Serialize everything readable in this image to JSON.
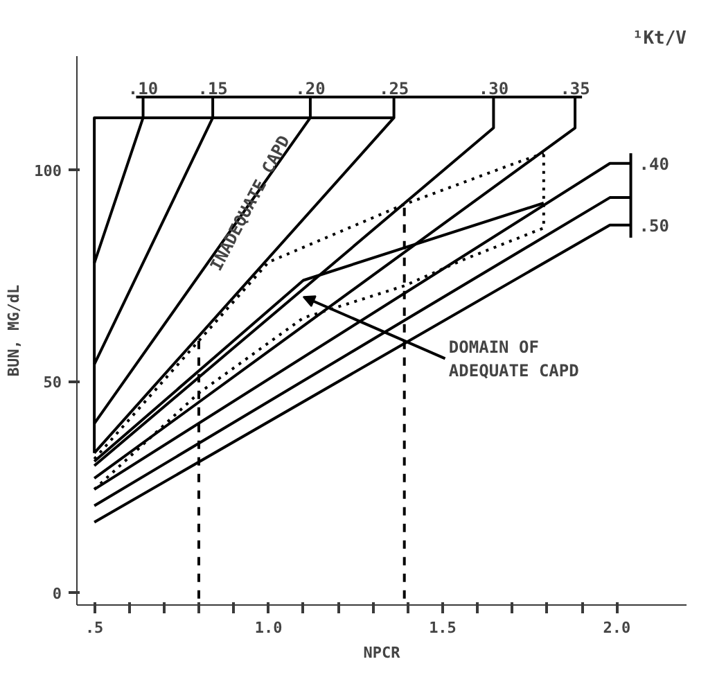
{
  "chart_data": {
    "type": "line",
    "xlabel": "NPCR",
    "ylabel": "BUN, MG/dL",
    "x2label": "¹Kt/V",
    "xlim": [
      0.45,
      2.2
    ],
    "ylim": [
      -3,
      127
    ],
    "xticks": [
      {
        "value": 0.5,
        "label": ".5"
      },
      {
        "value": 0.6,
        "label": null
      },
      {
        "value": 0.7,
        "label": null
      },
      {
        "value": 0.8,
        "label": null
      },
      {
        "value": 0.9,
        "label": null
      },
      {
        "value": 1.0,
        "label": "1.0"
      },
      {
        "value": 1.1,
        "label": null
      },
      {
        "value": 1.2,
        "label": null
      },
      {
        "value": 1.3,
        "label": null
      },
      {
        "value": 1.4,
        "label": null
      },
      {
        "value": 1.5,
        "label": "1.5"
      },
      {
        "value": 1.6,
        "label": null
      },
      {
        "value": 1.7,
        "label": null
      },
      {
        "value": 1.8,
        "label": null
      },
      {
        "value": 1.9,
        "label": null
      },
      {
        "value": 2.0,
        "label": "2.0"
      }
    ],
    "yticks": [
      0,
      50,
      100
    ],
    "grid": false,
    "marker": "none",
    "series": [
      {
        "name": ".10",
        "color": "#000000",
        "x": [
          0.5,
          0.64,
          0.64
        ],
        "values": [
          78,
          112.4,
          117.3
        ]
      },
      {
        "name": ".15",
        "color": "#000000",
        "x": [
          0.5,
          0.84,
          0.84
        ],
        "values": [
          54,
          112.4,
          117.3
        ]
      },
      {
        "name": ".20",
        "color": "#000000",
        "x": [
          0.5,
          1.12,
          1.12
        ],
        "values": [
          40,
          112.4,
          117.3
        ]
      },
      {
        "name": ".25",
        "color": "#000000",
        "x": [
          0.5,
          1.36,
          1.36
        ],
        "values": [
          33,
          112.4,
          117.3
        ]
      },
      {
        "name": ".30",
        "color": "#000000",
        "x": [
          0.5,
          1.646,
          1.646
        ],
        "values": [
          30,
          110,
          117.3
        ]
      },
      {
        "name": ".35",
        "color": "#000000",
        "x": [
          0.5,
          1.88,
          1.88
        ],
        "values": [
          27,
          110,
          117.3
        ]
      },
      {
        "name": ".40",
        "color": "#000000",
        "x": [
          0.5,
          1.98,
          2.04
        ],
        "values": [
          24.4,
          101.6,
          101.6
        ]
      },
      {
        "color": "#000000",
        "x": [
          0.5,
          1.98,
          2.04
        ],
        "values": [
          20.5,
          93.5,
          93.5
        ]
      },
      {
        "name": ".50",
        "color": "#000000",
        "x": [
          0.5,
          1.98,
          2.04
        ],
        "values": [
          16.6,
          87,
          87
        ]
      },
      {
        "color": "#000000",
        "x": [
          2.04,
          2.04
        ],
        "values": [
          104,
          84
        ]
      },
      {
        "color": "#000000",
        "x": [
          0.62,
          1.9
        ],
        "values": [
          117.3,
          117.3
        ]
      },
      {
        "color": "#000000",
        "x": [
          0.5,
          0.5,
          1.36
        ],
        "values": [
          33,
          112.4,
          112.4
        ]
      },
      {
        "color": "#000000",
        "x": [
          0.5,
          1.1,
          1.79
        ],
        "values": [
          31,
          73.9,
          92.2
        ]
      },
      {
        "color": "#000000",
        "line_style": "dotted",
        "x": [
          0.5,
          1.0,
          1.39,
          1.72,
          1.79
        ],
        "values": [
          31.6,
          78.2,
          91.9,
          102,
          104
        ]
      },
      {
        "color": "#000000",
        "line_style": "dotted",
        "x": [
          0.5,
          0.8,
          1.1,
          1.39,
          1.56,
          1.79,
          1.79
        ],
        "values": [
          24.4,
          47.2,
          65,
          72.6,
          78.8,
          86.3,
          104
        ]
      },
      {
        "color": "#000000",
        "line_style": "dashed",
        "x": [
          0.8,
          0.8
        ],
        "values": [
          -1.5,
          59.6
        ]
      },
      {
        "color": "#000000",
        "line_style": "dashed",
        "x": [
          1.39,
          1.39
        ],
        "values": [
          -1.5,
          91.9
        ]
      }
    ],
    "annotations": [
      "INADEQUATE CAPD",
      {
        "text": "DOMAIN OF ADEQUATE CAPD",
        "x": 1.1,
        "y": 70
      }
    ]
  }
}
